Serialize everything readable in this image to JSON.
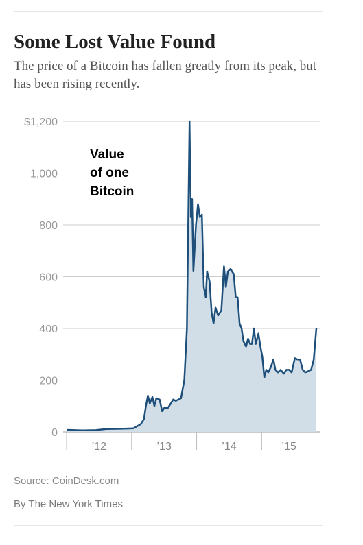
{
  "chart_data": {
    "type": "area",
    "title": "Some Lost Value Found",
    "subtitle": "The price of a Bitcoin has fallen greatly from its peak, but has been rising recently.",
    "annotation": [
      "Value",
      "of one",
      "Bitcoin"
    ],
    "source": "Source: CoinDesk.com",
    "credit": "By The New York Times",
    "x": [
      2012.0,
      2012.24,
      2012.45,
      2012.61,
      2012.77,
      2012.93,
      2013.03,
      2013.14,
      2013.19,
      2013.22,
      2013.25,
      2013.28,
      2013.32,
      2013.35,
      2013.38,
      2013.43,
      2013.47,
      2013.51,
      2013.55,
      2013.59,
      2013.64,
      2013.68,
      2013.72,
      2013.76,
      2013.81,
      2013.85,
      2013.89,
      2013.91,
      2013.93,
      2013.95,
      2013.99,
      2014.02,
      2014.05,
      2014.08,
      2014.11,
      2014.14,
      2014.16,
      2014.2,
      2014.23,
      2014.26,
      2014.29,
      2014.33,
      2014.38,
      2014.42,
      2014.45,
      2014.48,
      2014.52,
      2014.57,
      2014.6,
      2014.63,
      2014.66,
      2014.69,
      2014.72,
      2014.76,
      2014.79,
      2014.82,
      2014.85,
      2014.88,
      2014.91,
      2014.95,
      2014.98,
      2015.01,
      2015.04,
      2015.07,
      2015.1,
      2015.14,
      2015.18,
      2015.21,
      2015.25,
      2015.29,
      2015.34,
      2015.38,
      2015.42,
      2015.46,
      2015.51,
      2015.55,
      2015.59,
      2015.63,
      2015.67,
      2015.72,
      2015.76,
      2015.8,
      2015.84
    ],
    "series": [
      {
        "color": "#1d4f7a",
        "fill": "#d1dee7",
        "values": [
          8,
          6,
          7,
          11,
          12,
          13,
          14,
          30,
          50,
          100,
          140,
          110,
          135,
          100,
          130,
          125,
          80,
          95,
          90,
          105,
          125,
          120,
          125,
          130,
          200,
          400,
          1200,
          830,
          900,
          620,
          800,
          880,
          830,
          840,
          560,
          520,
          620,
          580,
          460,
          420,
          480,
          450,
          470,
          640,
          560,
          620,
          630,
          610,
          520,
          520,
          420,
          400,
          350,
          330,
          360,
          340,
          340,
          400,
          340,
          380,
          330,
          290,
          210,
          240,
          230,
          250,
          280,
          240,
          230,
          240,
          225,
          240,
          240,
          230,
          285,
          280,
          280,
          240,
          230,
          235,
          240,
          280,
          400
        ]
      }
    ],
    "xlim": [
      2012,
      2015.84
    ],
    "xticks": [
      {
        "value": 2012,
        "label": "’12"
      },
      {
        "value": 2013,
        "label": "’13"
      },
      {
        "value": 2014,
        "label": "’14"
      },
      {
        "value": 2015,
        "label": "’15"
      }
    ],
    "ylim": [
      0,
      1200
    ],
    "yticks": [
      0,
      200,
      400,
      600,
      800,
      {
        "value": 1000,
        "label": "1,000"
      },
      {
        "value": 1200,
        "label": "$1,200"
      }
    ],
    "grid": true
  }
}
